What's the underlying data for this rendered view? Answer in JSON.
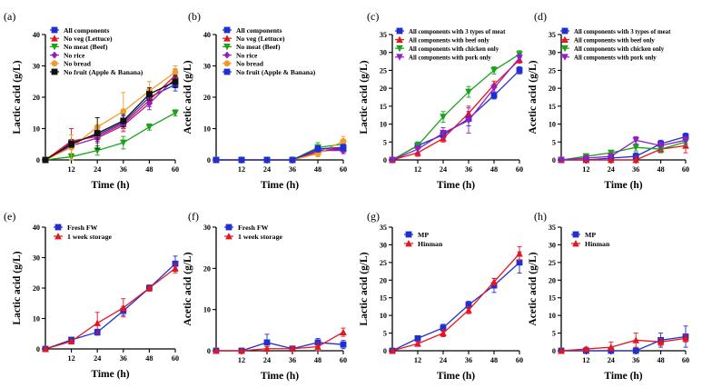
{
  "figure": {
    "colors": {
      "blue": "#1f2fd1",
      "red": "#e8141e",
      "green": "#1aa31a",
      "purple": "#8f1fc4",
      "orange": "#f39a2a",
      "black": "#111111"
    }
  },
  "chart_data": [
    {
      "panel": "(a)",
      "type": "line",
      "x": [
        0,
        12,
        24,
        36,
        48,
        60
      ],
      "xticks": [
        "12",
        "24",
        "36",
        "48",
        "60"
      ],
      "xlabel": "Time (h)",
      "ylabel": "Lactic acid (g/L)",
      "ylim": [
        0,
        40
      ],
      "yticks": [
        0,
        10,
        20,
        30,
        40
      ],
      "series": [
        {
          "name": "All components",
          "color": "blue",
          "marker": "square",
          "values": [
            0,
            5.5,
            8,
            12,
            20,
            24
          ],
          "err": [
            0,
            1,
            1.5,
            2,
            2,
            2
          ]
        },
        {
          "name": "No veg (Lettuce)",
          "color": "red",
          "marker": "triangle-up",
          "values": [
            0,
            6,
            7.5,
            11.5,
            19,
            27
          ],
          "err": [
            0,
            4,
            1.5,
            1.5,
            2,
            2
          ]
        },
        {
          "name": "No meat (Beef)",
          "color": "green",
          "marker": "triangle-down",
          "values": [
            0,
            1,
            3,
            5.5,
            10.5,
            15
          ],
          "err": [
            0,
            1,
            1.5,
            2,
            1,
            1
          ]
        },
        {
          "name": "No rice",
          "color": "purple",
          "marker": "diamond",
          "values": [
            0,
            4.5,
            7,
            11,
            18,
            26
          ],
          "err": [
            0,
            1,
            1.5,
            2,
            2,
            2
          ]
        },
        {
          "name": "No bread",
          "color": "orange",
          "marker": "circle",
          "values": [
            0,
            4,
            10.5,
            15.5,
            22,
            28
          ],
          "err": [
            0,
            4,
            3,
            6,
            3,
            2
          ]
        },
        {
          "name": "No fruit (Apple & Banana)",
          "color": "black",
          "marker": "square",
          "values": [
            0,
            5,
            8.5,
            12.5,
            21,
            25
          ],
          "err": [
            0,
            1,
            5,
            2,
            2,
            2
          ]
        }
      ]
    },
    {
      "panel": "(b)",
      "type": "line",
      "x": [
        0,
        12,
        24,
        36,
        48,
        60
      ],
      "xticks": [
        "12",
        "24",
        "36",
        "48",
        "60"
      ],
      "xlabel": "Time (h)",
      "ylabel": "Acetic acid (g/L)",
      "ylim": [
        0,
        40
      ],
      "yticks": [
        0,
        10,
        20,
        30,
        40
      ],
      "series": [
        {
          "name": "All components",
          "color": "blue",
          "marker": "square",
          "values": [
            0,
            0,
            0,
            0,
            3,
            3.5
          ],
          "err": [
            0,
            0,
            0,
            0,
            1,
            1.5
          ]
        },
        {
          "name": "No veg (Lettuce)",
          "color": "red",
          "marker": "triangle-up",
          "values": [
            0,
            0,
            0,
            0,
            2.5,
            4
          ],
          "err": [
            0,
            0,
            0,
            0,
            1,
            1.5
          ]
        },
        {
          "name": "No meat (Beef)",
          "color": "green",
          "marker": "triangle-down",
          "values": [
            0,
            0,
            0,
            0,
            4,
            5
          ],
          "err": [
            0,
            0,
            0,
            0,
            1.5,
            1.5
          ]
        },
        {
          "name": "No rice",
          "color": "purple",
          "marker": "diamond",
          "values": [
            0,
            0,
            0,
            0,
            3,
            3
          ],
          "err": [
            0,
            0,
            0,
            0,
            1,
            1
          ]
        },
        {
          "name": "No bread",
          "color": "orange",
          "marker": "circle",
          "values": [
            0,
            0,
            0,
            0,
            2,
            6
          ],
          "err": [
            0,
            0,
            0,
            0,
            1,
            1.5
          ]
        },
        {
          "name": "No fruit (Apple & Banana)",
          "color": "blue",
          "marker": "square",
          "values": [
            0,
            0,
            0,
            0,
            3.5,
            4
          ],
          "err": [
            0,
            0,
            0,
            0,
            1,
            1
          ]
        }
      ]
    },
    {
      "panel": "(c)",
      "type": "line",
      "x": [
        0,
        12,
        24,
        36,
        48,
        60
      ],
      "xticks": [
        "12",
        "24",
        "36",
        "48",
        "60"
      ],
      "xlabel": "Time (h)",
      "ylabel": "Lactic acid (g/L)",
      "ylim": [
        0,
        35
      ],
      "yticks": [
        0,
        5,
        10,
        15,
        20,
        25,
        30,
        35
      ],
      "series": [
        {
          "name": "All components with 3 types of meat",
          "color": "blue",
          "marker": "square",
          "values": [
            0,
            4,
            7,
            11.5,
            18,
            25
          ],
          "err": [
            0,
            1,
            1,
            2,
            1,
            1
          ]
        },
        {
          "name": "All components with beef only",
          "color": "red",
          "marker": "triangle-up",
          "values": [
            0,
            2,
            6,
            13,
            21,
            28
          ],
          "err": [
            0,
            1,
            1,
            2,
            1,
            1
          ]
        },
        {
          "name": "All components with chicken only",
          "color": "green",
          "marker": "triangle-down",
          "values": [
            0,
            4,
            12,
            19,
            25,
            29.5
          ],
          "err": [
            0,
            1,
            1.5,
            1.5,
            1,
            1
          ]
        },
        {
          "name": "All components with pork only",
          "color": "purple",
          "marker": "triangle-down",
          "values": [
            0,
            3,
            7.5,
            11,
            20,
            28.5
          ],
          "err": [
            0,
            1,
            1.5,
            3.5,
            1,
            1
          ]
        }
      ]
    },
    {
      "panel": "(d)",
      "type": "line",
      "x": [
        0,
        12,
        24,
        36,
        48,
        60
      ],
      "xticks": [
        "12",
        "24",
        "36",
        "48",
        "60"
      ],
      "xlabel": "Time (h)",
      "ylabel": "Acetic acid (g/L)",
      "ylim": [
        0,
        35
      ],
      "yticks": [
        0,
        5,
        10,
        15,
        20,
        25,
        30,
        35
      ],
      "series": [
        {
          "name": "All components with 3 types of meat",
          "color": "blue",
          "marker": "square",
          "values": [
            0,
            0,
            0.5,
            1,
            4.5,
            6.5
          ],
          "err": [
            0,
            0.5,
            0.5,
            1,
            1,
            1
          ]
        },
        {
          "name": "All components with beef only",
          "color": "red",
          "marker": "triangle-up",
          "values": [
            0,
            0,
            0,
            0,
            3,
            4
          ],
          "err": [
            0,
            0.5,
            0.5,
            1,
            1,
            2
          ]
        },
        {
          "name": "All components with chicken only",
          "color": "green",
          "marker": "triangle-down",
          "values": [
            0,
            1,
            2,
            3.5,
            3,
            5
          ],
          "err": [
            0,
            0.5,
            0.5,
            1,
            1,
            1
          ]
        },
        {
          "name": "All components with pork only",
          "color": "purple",
          "marker": "triangle-down",
          "values": [
            0,
            0.5,
            1,
            5.5,
            4,
            5.5
          ],
          "err": [
            0,
            0.5,
            0.5,
            1,
            1,
            1
          ]
        }
      ]
    },
    {
      "panel": "(e)",
      "type": "line",
      "x": [
        0,
        12,
        24,
        36,
        48,
        60
      ],
      "xticks": [
        "12",
        "24",
        "36",
        "48",
        "60"
      ],
      "xlabel": "Time (h)",
      "ylabel": "Lactic acid (g/L)",
      "ylim": [
        0,
        40
      ],
      "yticks": [
        0,
        10,
        20,
        30,
        40
      ],
      "series": [
        {
          "name": "Fresh FW",
          "color": "blue",
          "marker": "square",
          "values": [
            0,
            3,
            5.5,
            12.5,
            20,
            28
          ],
          "err": [
            0,
            0.5,
            1,
            1.5,
            1,
            2.5
          ]
        },
        {
          "name": "1 week storage",
          "color": "red",
          "marker": "triangle-up",
          "values": [
            0,
            2.5,
            8.5,
            13.5,
            20,
            26.5
          ],
          "err": [
            0,
            0.5,
            3.5,
            3,
            1,
            1.5
          ]
        }
      ]
    },
    {
      "panel": "(f)",
      "type": "line",
      "x": [
        0,
        12,
        24,
        36,
        48,
        60
      ],
      "xticks": [
        "12",
        "24",
        "36",
        "48",
        "60"
      ],
      "xlabel": "Time (h)",
      "ylabel": "Acetic acid (g/L)",
      "ylim": [
        0,
        30
      ],
      "yticks": [
        0,
        10,
        20,
        30
      ],
      "series": [
        {
          "name": "Fresh FW",
          "color": "blue",
          "marker": "square",
          "values": [
            0,
            0,
            2,
            0.5,
            2,
            1.5
          ],
          "err": [
            0,
            0,
            2,
            0.5,
            1,
            1
          ]
        },
        {
          "name": "1 week storage",
          "color": "red",
          "marker": "triangle-up",
          "values": [
            0,
            0,
            0.5,
            0.5,
            1,
            4.5
          ],
          "err": [
            0,
            0,
            0.5,
            0.5,
            1,
            1
          ]
        }
      ]
    },
    {
      "panel": "(g)",
      "type": "line",
      "x": [
        0,
        12,
        24,
        36,
        48,
        60
      ],
      "xticks": [
        "12",
        "24",
        "36",
        "48",
        "60"
      ],
      "xlabel": "Time (h)",
      "ylabel": "Lactic acid (g/L)",
      "ylim": [
        0,
        35
      ],
      "yticks": [
        0,
        5,
        10,
        15,
        20,
        25,
        30,
        35
      ],
      "series": [
        {
          "name": "MP",
          "color": "blue",
          "marker": "square",
          "values": [
            0,
            3.5,
            6.5,
            13,
            18.5,
            25
          ],
          "err": [
            0,
            0.5,
            1,
            1,
            2,
            3
          ]
        },
        {
          "name": "Hinman",
          "color": "red",
          "marker": "triangle-up",
          "values": [
            0,
            2,
            5,
            11.5,
            19.5,
            27.5
          ],
          "err": [
            0,
            0.5,
            1,
            1,
            1,
            2
          ]
        }
      ]
    },
    {
      "panel": "(h)",
      "type": "line",
      "x": [
        0,
        12,
        24,
        36,
        48,
        60
      ],
      "xticks": [
        "12",
        "24",
        "36",
        "48",
        "60"
      ],
      "xlabel": "Time (h)",
      "ylabel": "Acetic acid (g/L)",
      "ylim": [
        0,
        35
      ],
      "yticks": [
        0,
        5,
        10,
        15,
        20,
        25,
        30,
        35
      ],
      "series": [
        {
          "name": "MP",
          "color": "blue",
          "marker": "square",
          "values": [
            0,
            0,
            0,
            0,
            3,
            4
          ],
          "err": [
            0,
            0.5,
            0.5,
            0.5,
            2,
            3
          ]
        },
        {
          "name": "Hinman",
          "color": "red",
          "marker": "triangle-up",
          "values": [
            0,
            0.5,
            1,
            3,
            2.5,
            3.5
          ],
          "err": [
            0,
            0.5,
            1.5,
            2,
            1,
            1
          ]
        }
      ]
    }
  ]
}
